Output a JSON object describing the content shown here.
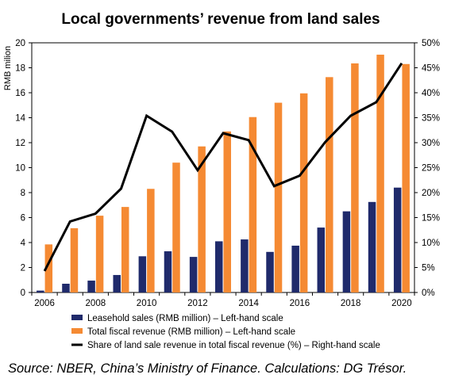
{
  "chart_data": {
    "type": "bar",
    "title": "Local governments’ revenue from land sales",
    "ylabel": "RMB milion",
    "xlabel": "",
    "ylim": [
      0,
      20
    ],
    "y2lim": [
      0,
      50
    ],
    "yticks": [
      "0",
      "2",
      "4",
      "6",
      "8",
      "10",
      "12",
      "14",
      "16",
      "18",
      "20"
    ],
    "y2ticks": [
      "0%",
      "5%",
      "10%",
      "15%",
      "20%",
      "25%",
      "30%",
      "35%",
      "40%",
      "45%",
      "50%"
    ],
    "x": [
      2006,
      2007,
      2008,
      2009,
      2010,
      2011,
      2012,
      2013,
      2014,
      2015,
      2016,
      2017,
      2018,
      2019,
      2020
    ],
    "xtick_labels": [
      "2006",
      "2008",
      "2010",
      "2012",
      "2014",
      "2016",
      "2018",
      "2020"
    ],
    "grid": false,
    "legend_position": "bottom",
    "series": [
      {
        "name": "Leasehold sales (RMB million) – Left-hand scale",
        "type": "bar",
        "axis": "left",
        "color": "#1f2a6b",
        "values": [
          0.15,
          0.7,
          0.95,
          1.4,
          2.9,
          3.3,
          2.85,
          4.1,
          4.25,
          3.25,
          3.75,
          5.2,
          6.5,
          7.25,
          8.4
        ]
      },
      {
        "name": "Total fiscal revenue (RMB million) – Left-hand scale",
        "type": "bar",
        "axis": "left",
        "color": "#f58a33",
        "values": [
          3.85,
          5.15,
          6.15,
          6.85,
          8.3,
          10.4,
          11.7,
          12.9,
          14.05,
          15.2,
          15.95,
          17.25,
          18.35,
          19.05,
          18.3
        ]
      },
      {
        "name": "Share of land sale revenue in total fiscal revenue (%) – Right-hand scale",
        "type": "line",
        "axis": "right",
        "color": "#000000",
        "values": [
          4.3,
          14.2,
          15.8,
          20.8,
          35.4,
          32.2,
          24.5,
          31.9,
          30.5,
          21.3,
          23.4,
          30.1,
          35.4,
          38.1,
          45.9
        ]
      }
    ]
  },
  "source_text": "Source: NBER, China’s Ministry of Finance. Calculations: DG Trésor."
}
